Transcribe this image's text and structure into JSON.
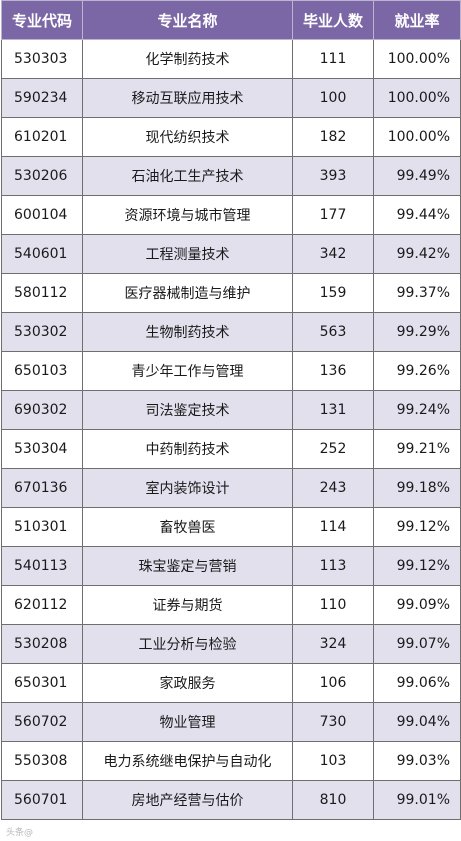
{
  "table": {
    "headers": [
      "专业代码",
      "专业名称",
      "毕业人数",
      "就业率"
    ],
    "rows": [
      [
        "530303",
        "化学制药技术",
        "111",
        "100.00%"
      ],
      [
        "590234",
        "移动互联应用技术",
        "100",
        "100.00%"
      ],
      [
        "610201",
        "现代纺织技术",
        "182",
        "100.00%"
      ],
      [
        "530206",
        "石油化工生产技术",
        "393",
        "99.49%"
      ],
      [
        "600104",
        "资源环境与城市管理",
        "177",
        "99.44%"
      ],
      [
        "540601",
        "工程测量技术",
        "342",
        "99.42%"
      ],
      [
        "580112",
        "医疗器械制造与维护",
        "159",
        "99.37%"
      ],
      [
        "530302",
        "生物制药技术",
        "563",
        "99.29%"
      ],
      [
        "650103",
        "青少年工作与管理",
        "136",
        "99.26%"
      ],
      [
        "690302",
        "司法鉴定技术",
        "131",
        "99.24%"
      ],
      [
        "530304",
        "中药制药技术",
        "252",
        "99.21%"
      ],
      [
        "670136",
        "室内装饰设计",
        "243",
        "99.18%"
      ],
      [
        "510301",
        "畜牧兽医",
        "114",
        "99.12%"
      ],
      [
        "540113",
        "珠宝鉴定与营销",
        "113",
        "99.12%"
      ],
      [
        "620112",
        "证券与期货",
        "110",
        "99.09%"
      ],
      [
        "530208",
        "工业分析与检验",
        "324",
        "99.07%"
      ],
      [
        "650301",
        "家政服务",
        "106",
        "99.06%"
      ],
      [
        "560702",
        "物业管理",
        "730",
        "99.04%"
      ],
      [
        "550308",
        "电力系统继电保护与自动化",
        "103",
        "99.03%"
      ],
      [
        "560701",
        "房地产经营与估价",
        "810",
        "99.01%"
      ]
    ]
  },
  "watermark": "头条@"
}
